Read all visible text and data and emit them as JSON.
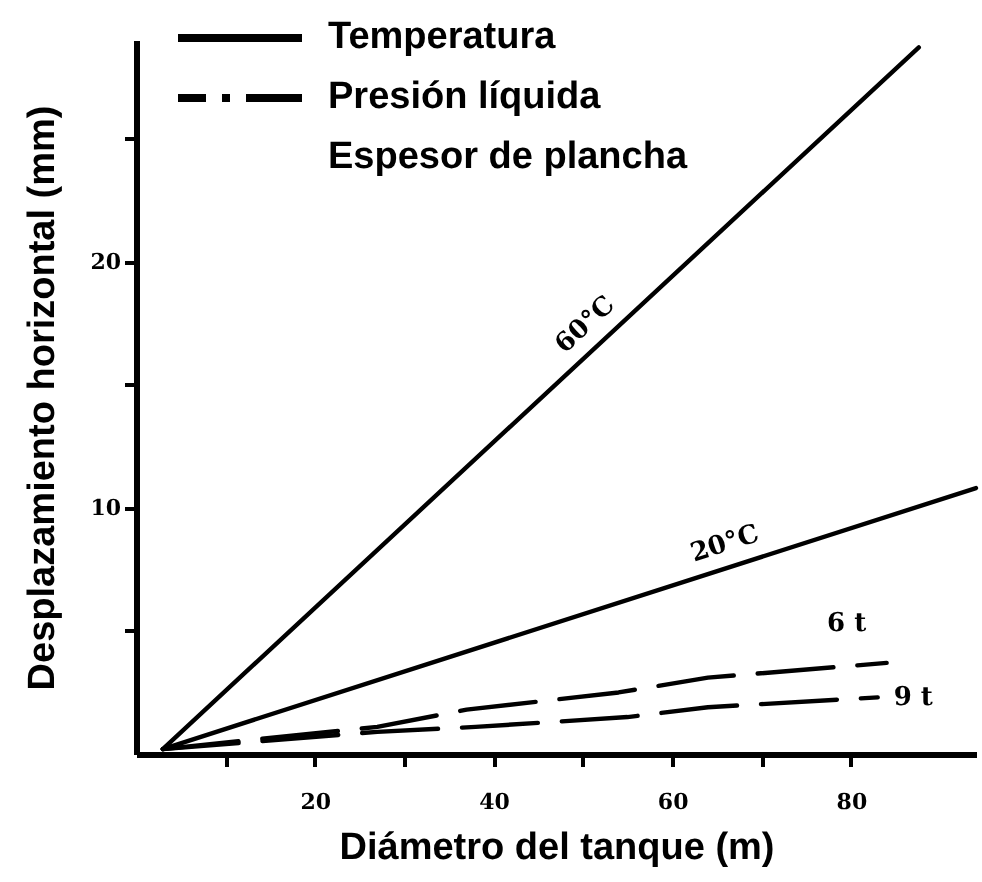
{
  "chart_data": {
    "type": "line",
    "xlabel": "Diámetro del tanque (m)",
    "ylabel": "Desplazamiento horizontal (mm)",
    "xlim": [
      0,
      94
    ],
    "xticks": [
      {
        "value": 10,
        "label": null
      },
      20,
      {
        "value": 30,
        "label": null
      },
      40,
      {
        "value": 50,
        "label": null
      },
      60,
      {
        "value": 70,
        "label": null
      },
      80
    ],
    "ylim": [
      0,
      29
    ],
    "yticks": [
      {
        "value": 5,
        "label": null
      },
      10,
      {
        "value": 15,
        "label": null
      },
      20,
      {
        "value": 25,
        "label": null
      }
    ],
    "grid": false,
    "marker": "none",
    "annotations": [
      "Temperatura",
      "Presión líquida",
      "Espesor de plancha"
    ],
    "series": [
      {
        "name": "60°C",
        "color": "#000000",
        "line_style": "solid",
        "x": [
          3,
          87.6
        ],
        "values": [
          0.2,
          28.7
        ]
      },
      {
        "name": "20°C",
        "color": "#000000",
        "line_style": "solid",
        "x": [
          3,
          94
        ],
        "values": [
          0.2,
          10.8
        ]
      },
      {
        "name": "6 t",
        "color": "#000000",
        "line_style": "dashed",
        "x": [
          3,
          27,
          37,
          54,
          64,
          84
        ],
        "values": [
          0.2,
          1.1,
          1.8,
          2.5,
          3.1,
          3.7
        ]
      },
      {
        "name": "9 t",
        "color": "#000000",
        "line_style": "dashed",
        "x": [
          3,
          27,
          38,
          55,
          64,
          83
        ],
        "values": [
          0.2,
          0.9,
          1.1,
          1.5,
          1.9,
          2.3
        ]
      }
    ]
  }
}
